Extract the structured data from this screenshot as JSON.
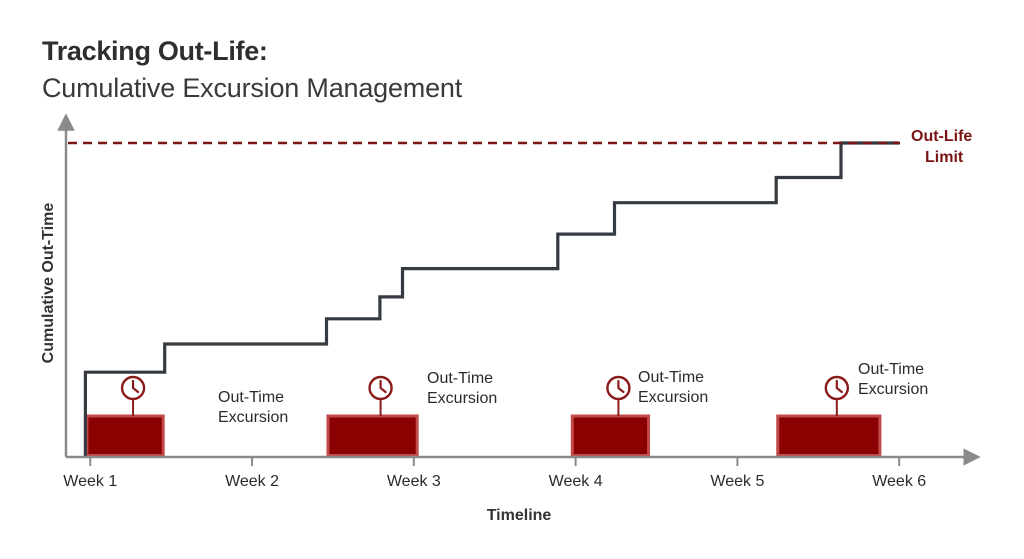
{
  "title": "Tracking Out-Life:",
  "subtitle": "Cumulative Excursion Management",
  "colors": {
    "axis": "#8a8a8a",
    "step_line": "#353b40",
    "limit": "#7a1515",
    "excursion_fill": "#8b0000",
    "excursion_stroke": "#c24a4a",
    "clock": "#8b1a1a",
    "text": "#2b2b2b"
  },
  "chart_data": {
    "type": "line",
    "xlabel": "Timeline",
    "ylabel": "Cumulative Out-Time",
    "x_ticks": [
      "Week 1",
      "Week 2",
      "Week 3",
      "Week 4",
      "Week 5",
      "Week 6"
    ],
    "y_ticks": [],
    "grid": false,
    "xlim": [
      0.85,
      6.45
    ],
    "ylim": [
      0,
      100
    ],
    "limit": {
      "label_line1": "Out-Life",
      "label_line2": "Limit",
      "value": 100,
      "style": "dashed"
    },
    "series": [
      {
        "style": "step",
        "x": [
          0.97,
          0.97,
          1.46,
          1.46,
          2.46,
          2.46,
          2.79,
          2.79,
          2.93,
          2.93,
          3.89,
          3.89,
          4.24,
          4.24,
          5.24,
          5.24,
          5.64,
          5.64,
          6.0
        ],
        "y": [
          0,
          27,
          27,
          36,
          36,
          44,
          44,
          51,
          51,
          60,
          60,
          71,
          71,
          81,
          81,
          89,
          89,
          100,
          100
        ]
      }
    ],
    "excursions": [
      {
        "start": 0.97,
        "end": 1.46,
        "label_line1": "Out-Time",
        "label_line2": "Excursion",
        "label_side": "right"
      },
      {
        "start": 2.46,
        "end": 3.03,
        "label_line1": "Out-Time",
        "label_line2": "Excursion",
        "label_side": "right"
      },
      {
        "start": 3.97,
        "end": 4.46,
        "label_line1": "Out-Time",
        "label_line2": "Excursion",
        "label_side": "right"
      },
      {
        "start": 5.24,
        "end": 5.89,
        "label_line1": "Out-Time",
        "label_line2": "Excursion",
        "label_side": "right"
      }
    ]
  }
}
